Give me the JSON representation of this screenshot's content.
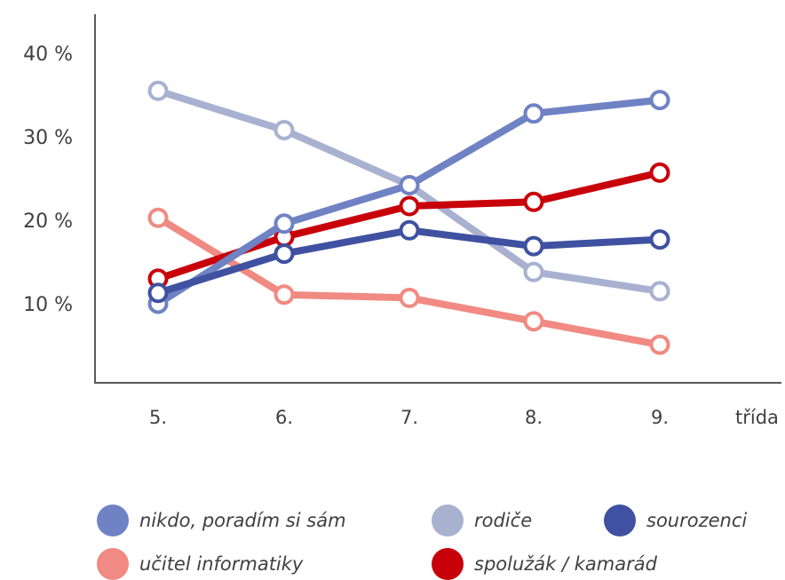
{
  "chart_data": {
    "type": "line",
    "categories": [
      "5.",
      "6.",
      "7.",
      "8.",
      "9."
    ],
    "xlabel": "třída",
    "ylabel": "",
    "y_ticks": [
      "10 %",
      "20 %",
      "30 %",
      "40 %"
    ],
    "ylim": [
      0,
      45
    ],
    "grid": false,
    "legend_position": "bottom",
    "series": [
      {
        "name": "rodiče",
        "color": "#a8b1cf",
        "values": [
          35.5,
          30.8,
          24.2,
          13.8,
          11.5
        ]
      },
      {
        "name": "učitel informatiky",
        "color": "#f08a82",
        "values": [
          20.3,
          11.1,
          10.7,
          7.9,
          5.1
        ]
      },
      {
        "name": "spolužák / kamarád",
        "color": "#c8000a",
        "values": [
          13.0,
          18.0,
          21.7,
          22.2,
          25.7
        ]
      },
      {
        "name": "nikdo, poradím si sám",
        "color": "#6f82c4",
        "values": [
          10.0,
          19.6,
          24.2,
          32.8,
          34.4
        ]
      },
      {
        "name": "sourozenci",
        "color": "#3f51a0",
        "values": [
          11.3,
          16.0,
          18.8,
          16.9,
          17.7
        ]
      }
    ]
  },
  "legend": [
    {
      "label": "nikdo, poradím si sám",
      "color": "#6f82c4"
    },
    {
      "label": "rodiče",
      "color": "#a8b1cf"
    },
    {
      "label": "sourozenci",
      "color": "#3f51a0"
    },
    {
      "label": "učitel informatiky",
      "color": "#f08a82"
    },
    {
      "label": "spolužák / kamarád",
      "color": "#c8000a"
    }
  ]
}
